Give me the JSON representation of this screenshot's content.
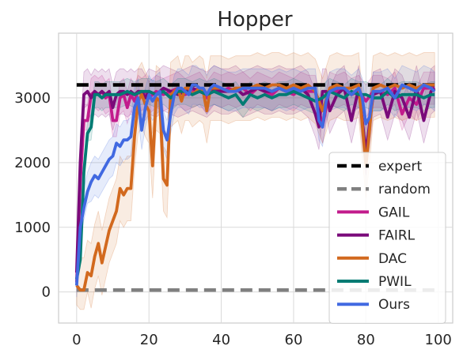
{
  "chart_data": {
    "type": "line",
    "title": "Hopper",
    "xlabel": "",
    "ylabel": "",
    "xlim": [
      -5,
      104
    ],
    "ylim": [
      -480,
      4000
    ],
    "xticks": [
      0,
      20,
      40,
      60,
      80,
      100
    ],
    "yticks": [
      0,
      1000,
      2000,
      3000
    ],
    "grid": true,
    "legend_position": "lower-right",
    "series": [
      {
        "name": "expert",
        "color": "#000000",
        "style": "dashed",
        "x": [
          0,
          100
        ],
        "y": [
          3200,
          3200
        ],
        "band": null
      },
      {
        "name": "random",
        "color": "#808080",
        "style": "dashed",
        "x": [
          0,
          100
        ],
        "y": [
          30,
          30
        ],
        "band": null
      },
      {
        "name": "GAIL",
        "color": "#c21b8c",
        "style": "solid",
        "x": [
          0,
          1,
          2,
          3,
          4,
          5,
          6,
          7,
          8,
          9,
          10,
          11,
          12,
          13,
          14,
          15,
          16,
          17,
          18,
          19,
          20,
          22,
          24,
          26,
          28,
          30,
          32,
          34,
          36,
          38,
          40,
          42,
          44,
          46,
          48,
          50,
          52,
          54,
          56,
          58,
          60,
          62,
          64,
          66,
          68,
          70,
          72,
          74,
          76,
          78,
          80,
          82,
          84,
          86,
          88,
          90,
          92,
          94,
          96,
          98,
          99
        ],
        "y": [
          150,
          1700,
          2650,
          2650,
          3050,
          3100,
          3050,
          3100,
          3000,
          3050,
          2650,
          2650,
          3000,
          3050,
          2850,
          3050,
          2950,
          3100,
          3050,
          3100,
          3000,
          3100,
          3050,
          3100,
          3150,
          3050,
          3100,
          3150,
          3000,
          3150,
          3100,
          3150,
          3100,
          3150,
          3050,
          3150,
          3100,
          3050,
          3150,
          3100,
          3050,
          3150,
          3100,
          3100,
          2550,
          3150,
          3100,
          3150,
          3050,
          3100,
          2950,
          3100,
          3100,
          3050,
          3150,
          2750,
          3000,
          2900,
          3150,
          3150,
          3150
        ],
        "band": 250
      },
      {
        "name": "FAIRL",
        "color": "#7a0a7a",
        "style": "solid",
        "x": [
          0,
          1,
          2,
          3,
          4,
          5,
          6,
          7,
          8,
          9,
          10,
          11,
          12,
          13,
          14,
          15,
          16,
          17,
          18,
          19,
          20,
          22,
          24,
          26,
          28,
          30,
          32,
          34,
          36,
          38,
          40,
          42,
          44,
          46,
          48,
          50,
          52,
          54,
          56,
          58,
          60,
          62,
          64,
          66,
          67,
          68,
          69,
          70,
          72,
          74,
          76,
          78,
          80,
          82,
          84,
          86,
          88,
          90,
          92,
          94,
          96,
          98,
          99
        ],
        "y": [
          300,
          2000,
          3050,
          3100,
          3000,
          3100,
          3050,
          3100,
          3050,
          3100,
          2850,
          3050,
          3100,
          3100,
          3050,
          3100,
          3050,
          3100,
          3100,
          3000,
          3100,
          3050,
          3150,
          3100,
          3050,
          3100,
          3150,
          3100,
          3050,
          3150,
          3100,
          3100,
          3150,
          3050,
          3100,
          3150,
          3100,
          3100,
          3150,
          3100,
          3100,
          3150,
          3050,
          2750,
          2550,
          3100,
          3100,
          2800,
          3050,
          3150,
          2650,
          3150,
          2150,
          3050,
          3100,
          2700,
          3100,
          3000,
          2700,
          3150,
          2650,
          3100,
          3150
        ],
        "band": 350
      },
      {
        "name": "DAC",
        "color": "#d2691e",
        "style": "solid",
        "x": [
          0,
          1,
          2,
          3,
          4,
          5,
          6,
          7,
          8,
          9,
          10,
          11,
          12,
          13,
          14,
          15,
          16,
          17,
          18,
          19,
          20,
          21,
          22,
          23,
          24,
          25,
          26,
          27,
          28,
          29,
          30,
          31,
          32,
          33,
          34,
          35,
          36,
          37,
          38,
          40,
          42,
          44,
          46,
          48,
          50,
          52,
          54,
          56,
          58,
          60,
          62,
          64,
          66,
          68,
          70,
          72,
          74,
          76,
          78,
          80,
          81,
          82,
          84,
          86,
          88,
          90,
          92,
          94,
          96,
          98,
          99
        ],
        "y": [
          100,
          30,
          30,
          300,
          250,
          550,
          750,
          450,
          700,
          950,
          1100,
          1250,
          1600,
          1500,
          1600,
          1600,
          2400,
          2950,
          3050,
          2900,
          2800,
          1950,
          3000,
          2950,
          1750,
          1650,
          3050,
          3100,
          3150,
          2950,
          3150,
          3150,
          3050,
          3100,
          3150,
          3100,
          2800,
          3150,
          3150,
          3150,
          3100,
          3150,
          3150,
          3150,
          3200,
          3150,
          3200,
          3200,
          3150,
          3200,
          3150,
          3200,
          3100,
          2800,
          3150,
          3200,
          3150,
          3150,
          3200,
          1950,
          2500,
          3150,
          3200,
          3150,
          3200,
          3150,
          3200,
          3150,
          3200,
          3200,
          3200
        ],
        "band": 500
      },
      {
        "name": "PWIL",
        "color": "#007b73",
        "style": "solid",
        "x": [
          0,
          1,
          2,
          3,
          4,
          5,
          6,
          7,
          8,
          10,
          12,
          14,
          16,
          18,
          20,
          22,
          24,
          26,
          28,
          30,
          32,
          34,
          36,
          38,
          40,
          42,
          44,
          46,
          48,
          50,
          52,
          54,
          56,
          58,
          60,
          62,
          64,
          66,
          68,
          70,
          72,
          74,
          76,
          78,
          80,
          82,
          84,
          86,
          88,
          90,
          92,
          94,
          96,
          98,
          99
        ],
        "y": [
          200,
          500,
          1850,
          2450,
          2550,
          3050,
          3050,
          3000,
          3050,
          3050,
          3050,
          3100,
          3050,
          3100,
          3100,
          3050,
          3100,
          3000,
          3100,
          3100,
          3050,
          3100,
          3050,
          3100,
          3050,
          3000,
          3050,
          2900,
          3050,
          3000,
          3050,
          3000,
          3050,
          3050,
          3100,
          3050,
          3000,
          2950,
          3000,
          3100,
          3050,
          3000,
          3100,
          3050,
          3050,
          3000,
          3000,
          3100,
          3000,
          3050,
          3050,
          3050,
          3000,
          3050,
          3050
        ],
        "band": 200
      },
      {
        "name": "Ours",
        "color": "#4169e1",
        "style": "solid",
        "x": [
          0,
          1,
          2,
          3,
          4,
          5,
          6,
          7,
          8,
          9,
          10,
          11,
          12,
          13,
          14,
          15,
          16,
          17,
          18,
          19,
          20,
          21,
          22,
          23,
          24,
          25,
          26,
          27,
          28,
          29,
          30,
          31,
          32,
          33,
          34,
          35,
          36,
          37,
          38,
          40,
          42,
          44,
          46,
          48,
          50,
          52,
          54,
          56,
          58,
          60,
          62,
          64,
          66,
          67,
          68,
          69,
          70,
          72,
          74,
          76,
          78,
          79,
          80,
          81,
          82,
          84,
          86,
          88,
          90,
          92,
          94,
          96,
          98,
          99
        ],
        "y": [
          100,
          1000,
          1300,
          1550,
          1700,
          1800,
          1750,
          1850,
          1950,
          2050,
          2100,
          2300,
          2250,
          2350,
          2350,
          2400,
          2850,
          3000,
          2500,
          2850,
          3050,
          2950,
          3050,
          3100,
          2500,
          2350,
          2750,
          3050,
          3150,
          3150,
          3100,
          3050,
          3200,
          3200,
          3150,
          3150,
          3050,
          3150,
          3200,
          3150,
          3100,
          3100,
          3150,
          3150,
          3150,
          3150,
          3100,
          3150,
          3100,
          3150,
          3100,
          3150,
          3150,
          2650,
          2550,
          2950,
          3100,
          3150,
          3150,
          3050,
          3150,
          3000,
          2600,
          2700,
          3100,
          3100,
          3150,
          3000,
          3200,
          3150,
          3100,
          3200,
          3150,
          3100
        ],
        "band": 300
      }
    ]
  }
}
